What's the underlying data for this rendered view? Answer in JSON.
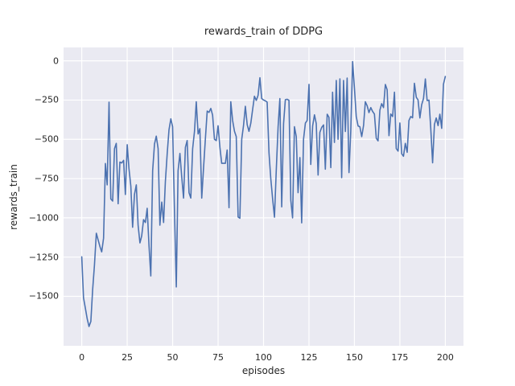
{
  "figure": {
    "background": "#ffffff",
    "axes_background": "#eaeaf2",
    "grid_color": "#ffffff",
    "text_color": "#262626"
  },
  "chart_data": {
    "type": "line",
    "title": "rewards_train of DDPG",
    "xlabel": "episodes",
    "ylabel": "rewards_train",
    "grid": true,
    "legend": false,
    "xlim": [
      -10,
      210
    ],
    "ylim": [
      -1815,
      85
    ],
    "xticks": [
      0,
      25,
      50,
      75,
      100,
      125,
      150,
      175,
      200
    ],
    "xtick_labels": [
      "0",
      "25",
      "50",
      "75",
      "100",
      "125",
      "150",
      "175",
      "200"
    ],
    "yticks": [
      0,
      -250,
      -500,
      -750,
      -1000,
      -1250,
      -1500
    ],
    "ytick_labels": [
      "0",
      "−250",
      "−500",
      "−750",
      "−1000",
      "−1250",
      "−1500"
    ],
    "series": [
      {
        "name": "rewards_train",
        "color": "#4c72b0",
        "x_start": 0,
        "x_step": 1,
        "values": [
          -1248,
          -1510,
          -1576,
          -1644,
          -1692,
          -1660,
          -1460,
          -1300,
          -1098,
          -1140,
          -1183,
          -1217,
          -1130,
          -654,
          -790,
          -264,
          -880,
          -893,
          -560,
          -526,
          -910,
          -645,
          -651,
          -634,
          -851,
          -534,
          -688,
          -799,
          -1060,
          -851,
          -790,
          -1046,
          -1160,
          -1115,
          -1012,
          -1030,
          -940,
          -1180,
          -1370,
          -700,
          -530,
          -480,
          -560,
          -1047,
          -900,
          -1030,
          -770,
          -590,
          -440,
          -370,
          -420,
          -950,
          -1440,
          -700,
          -590,
          -737,
          -874,
          -551,
          -508,
          -840,
          -874,
          -560,
          -449,
          -261,
          -466,
          -432,
          -874,
          -687,
          -500,
          -320,
          -329,
          -303,
          -346,
          -500,
          -508,
          -414,
          -551,
          -653,
          -653,
          -653,
          -568,
          -935,
          -261,
          -381,
          -449,
          -483,
          -995,
          -1003,
          -500,
          -414,
          -290,
          -407,
          -449,
          -397,
          -312,
          -226,
          -252,
          -220,
          -108,
          -240,
          -250,
          -255,
          -263,
          -587,
          -750,
          -880,
          -996,
          -700,
          -420,
          -240,
          -930,
          -400,
          -248,
          -245,
          -252,
          -888,
          -1000,
          -420,
          -483,
          -840,
          -616,
          -1032,
          -500,
          -397,
          -380,
          -150,
          -660,
          -416,
          -344,
          -400,
          -728,
          -456,
          -424,
          -408,
          -690,
          -340,
          -360,
          -680,
          -200,
          -520,
          -125,
          -500,
          -115,
          -744,
          -125,
          -450,
          -110,
          -712,
          -448,
          -5,
          -176,
          -355,
          -415,
          -420,
          -483,
          -412,
          -261,
          -287,
          -330,
          -298,
          -322,
          -339,
          -493,
          -510,
          -314,
          -273,
          -298,
          -151,
          -184,
          -477,
          -339,
          -355,
          -200,
          -559,
          -575,
          -396,
          -592,
          -608,
          -526,
          -583,
          -380,
          -355,
          -363,
          -143,
          -232,
          -249,
          -364,
          -280,
          -240,
          -116,
          -253,
          -251,
          -430,
          -650,
          -405,
          -364,
          -413,
          -340,
          -430,
          -149,
          -100
        ]
      }
    ]
  }
}
